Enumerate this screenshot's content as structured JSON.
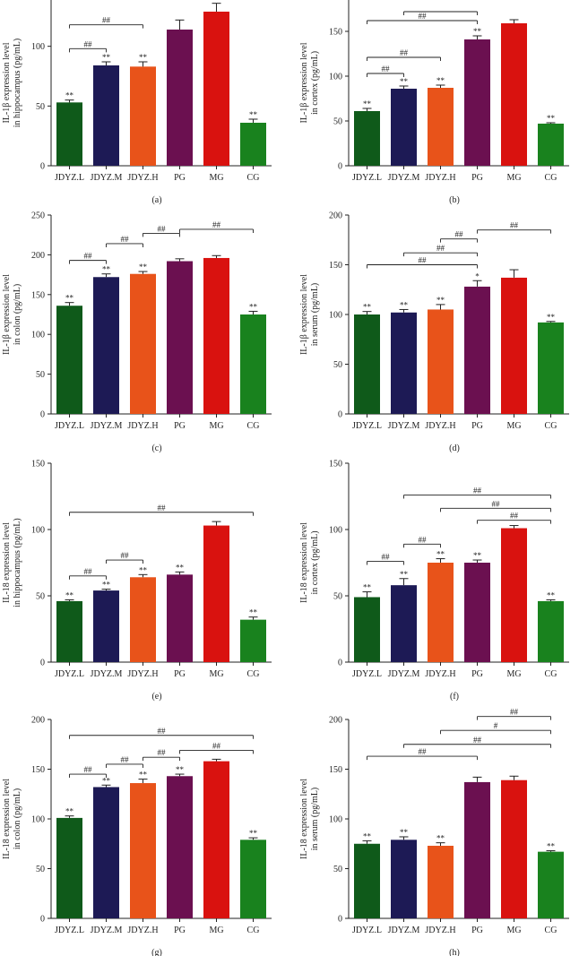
{
  "figure": {
    "categories": [
      "JDYZ.L",
      "JDYZ.M",
      "JDYZ.H",
      "PG",
      "MG",
      "CG"
    ],
    "bar_colors": {
      "JDYZ.L": "#0f5a1a",
      "JDYZ.M": "#1d1a55",
      "JDYZ.H": "#e8531a",
      "PG": "#6b1050",
      "MG": "#d9120f",
      "CG": "#19821e"
    }
  },
  "chart_data": [
    {
      "panel": "(a)",
      "type": "bar",
      "ylabel": [
        "IL-1β expression level",
        "in hippocampus (pg/mL)"
      ],
      "ylim": [
        0,
        150
      ],
      "yticks": [
        0,
        50,
        100
      ],
      "categories": [
        "JDYZ.L",
        "JDYZ.M",
        "JDYZ.H",
        "PG",
        "MG",
        "CG"
      ],
      "values": [
        53,
        84,
        83,
        114,
        129,
        36
      ],
      "errors": [
        2,
        3,
        4,
        8,
        7,
        3
      ],
      "labels": [
        "**",
        "**",
        "**",
        "",
        "",
        "**"
      ],
      "comparisons": [
        {
          "from": "JDYZ.L",
          "to": "JDYZ.H",
          "label": "##",
          "level": 118
        },
        {
          "from": "JDYZ.L",
          "to": "JDYZ.M",
          "label": "##",
          "level": 98
        }
      ]
    },
    {
      "panel": "(b)",
      "type": "bar",
      "ylabel": [
        "IL-1β expression level",
        "in cortex (pg/mL)"
      ],
      "ylim": [
        0,
        200
      ],
      "yticks": [
        0,
        50,
        100,
        150
      ],
      "categories": [
        "JDYZ.L",
        "JDYZ.M",
        "JDYZ.H",
        "PG",
        "MG",
        "CG"
      ],
      "values": [
        61,
        86,
        87,
        141,
        159,
        47
      ],
      "errors": [
        3,
        3,
        3,
        4,
        4,
        1
      ],
      "labels": [
        "**",
        "**",
        "**",
        "**",
        "",
        "**"
      ],
      "comparisons": [
        {
          "from": "JDYZ.L",
          "to": "PG",
          "label": "##",
          "level": 162
        },
        {
          "from": "JDYZ.M",
          "to": "PG",
          "label": "",
          "level": 172
        },
        {
          "from": "JDYZ.L",
          "to": "JDYZ.H",
          "label": "##",
          "level": 121
        },
        {
          "from": "JDYZ.L",
          "to": "JDYZ.M",
          "label": "##",
          "level": 103
        }
      ]
    },
    {
      "panel": "(c)",
      "type": "bar",
      "ylabel": [
        "IL-1β expression level",
        "in colon (pg/mL)"
      ],
      "ylim": [
        0,
        250
      ],
      "yticks": [
        0,
        50,
        100,
        150,
        200,
        250
      ],
      "categories": [
        "JDYZ.L",
        "JDYZ.M",
        "JDYZ.H",
        "PG",
        "MG",
        "CG"
      ],
      "values": [
        136,
        172,
        176,
        192,
        196,
        125
      ],
      "errors": [
        4,
        4,
        3,
        3,
        3,
        4
      ],
      "labels": [
        "**",
        "**",
        "**",
        "",
        "",
        "**"
      ],
      "comparisons": [
        {
          "from": "JDYZ.L",
          "to": "JDYZ.M",
          "label": "##",
          "level": 193
        },
        {
          "from": "JDYZ.M",
          "to": "JDYZ.H",
          "label": "##",
          "level": 214
        },
        {
          "from": "JDYZ.H",
          "to": "PG",
          "label": "##",
          "level": 227
        },
        {
          "from": "PG",
          "to": "CG",
          "label": "##",
          "level": 232
        }
      ]
    },
    {
      "panel": "(d)",
      "type": "bar",
      "ylabel": [
        "IL-1β expression level",
        "in serum (pg/mL)"
      ],
      "ylim": [
        0,
        200
      ],
      "yticks": [
        0,
        50,
        100,
        150,
        200
      ],
      "categories": [
        "JDYZ.L",
        "JDYZ.M",
        "JDYZ.H",
        "PG",
        "MG",
        "CG"
      ],
      "values": [
        100,
        102,
        105,
        128,
        137,
        92
      ],
      "errors": [
        3,
        3,
        5,
        6,
        8,
        1
      ],
      "labels": [
        "**",
        "**",
        "**",
        "*",
        "",
        "**"
      ],
      "comparisons": [
        {
          "from": "JDYZ.L",
          "to": "PG",
          "label": "##",
          "level": 150
        },
        {
          "from": "JDYZ.M",
          "to": "PG",
          "label": "##",
          "level": 162
        },
        {
          "from": "JDYZ.H",
          "to": "PG",
          "label": "##",
          "level": 176
        },
        {
          "from": "PG",
          "to": "CG",
          "label": "##",
          "level": 185
        }
      ]
    },
    {
      "panel": "(e)",
      "type": "bar",
      "ylabel": [
        "IL-18 expression level",
        "in hippocampus (pg/mL)"
      ],
      "ylim": [
        0,
        150
      ],
      "yticks": [
        0,
        50,
        100,
        150
      ],
      "categories": [
        "JDYZ.L",
        "JDYZ.M",
        "JDYZ.H",
        "PG",
        "MG",
        "CG"
      ],
      "values": [
        46,
        54,
        64,
        66,
        103,
        32
      ],
      "errors": [
        1,
        1,
        2,
        2,
        3,
        2
      ],
      "labels": [
        "**",
        "**",
        "**",
        "**",
        "",
        "**"
      ],
      "comparisons": [
        {
          "from": "JDYZ.L",
          "to": "JDYZ.M",
          "label": "##",
          "level": 65
        },
        {
          "from": "JDYZ.M",
          "to": "JDYZ.H",
          "label": "##",
          "level": 77
        },
        {
          "from": "JDYZ.L",
          "to": "CG",
          "label": "##",
          "level": 113
        }
      ]
    },
    {
      "panel": "(f)",
      "type": "bar",
      "ylabel": [
        "IL-18 expression level",
        "in cortex (pg/mL)"
      ],
      "ylim": [
        0,
        150
      ],
      "yticks": [
        0,
        50,
        100,
        150
      ],
      "categories": [
        "JDYZ.L",
        "JDYZ.M",
        "JDYZ.H",
        "PG",
        "MG",
        "CG"
      ],
      "values": [
        49,
        58,
        75,
        75,
        101,
        46
      ],
      "errors": [
        4,
        5,
        3,
        2,
        2,
        1
      ],
      "labels": [
        "**",
        "**",
        "**",
        "**",
        "",
        "**"
      ],
      "comparisons": [
        {
          "from": "JDYZ.L",
          "to": "JDYZ.M",
          "label": "##",
          "level": 76
        },
        {
          "from": "JDYZ.M",
          "to": "JDYZ.H",
          "label": "##",
          "level": 89
        },
        {
          "from": "PG",
          "to": "CG",
          "label": "##",
          "level": 107
        },
        {
          "from": "JDYZ.H",
          "to": "CG",
          "label": "##",
          "level": 116
        },
        {
          "from": "JDYZ.M",
          "to": "CG",
          "label": "##",
          "level": 126
        }
      ]
    },
    {
      "panel": "(g)",
      "type": "bar",
      "ylabel": [
        "IL-18 expression level",
        "in colon (pg/mL)"
      ],
      "ylim": [
        0,
        200
      ],
      "yticks": [
        0,
        50,
        100,
        150,
        200
      ],
      "categories": [
        "JDYZ.L",
        "JDYZ.M",
        "JDYZ.H",
        "PG",
        "MG",
        "CG"
      ],
      "values": [
        101,
        132,
        136,
        143,
        158,
        79
      ],
      "errors": [
        2,
        2,
        4,
        2,
        2,
        2
      ],
      "labels": [
        "**",
        "**",
        "**",
        "**",
        "",
        "**"
      ],
      "comparisons": [
        {
          "from": "JDYZ.L",
          "to": "JDYZ.M",
          "label": "##",
          "level": 145
        },
        {
          "from": "JDYZ.M",
          "to": "JDYZ.H",
          "label": "##",
          "level": 155
        },
        {
          "from": "JDYZ.H",
          "to": "PG",
          "label": "##",
          "level": 162
        },
        {
          "from": "PG",
          "to": "CG",
          "label": "##",
          "level": 169
        },
        {
          "from": "JDYZ.L",
          "to": "CG",
          "label": "##",
          "level": 184
        }
      ]
    },
    {
      "panel": "(h)",
      "type": "bar",
      "ylabel": [
        "IL-18 expression level",
        "in serum (pg/mL)"
      ],
      "ylim": [
        0,
        200
      ],
      "yticks": [
        0,
        50,
        100,
        150,
        200
      ],
      "categories": [
        "JDYZ.L",
        "JDYZ.M",
        "JDYZ.H",
        "PG",
        "MG",
        "CG"
      ],
      "values": [
        75,
        79,
        73,
        137,
        139,
        67
      ],
      "errors": [
        3,
        3,
        3,
        5,
        4,
        1
      ],
      "labels": [
        "**",
        "**",
        "**",
        "",
        "",
        "**"
      ],
      "comparisons": [
        {
          "from": "JDYZ.L",
          "to": "PG",
          "label": "##",
          "level": 163
        },
        {
          "from": "JDYZ.M",
          "to": "CG",
          "label": "##",
          "level": 175
        },
        {
          "from": "JDYZ.H",
          "to": "CG",
          "label": "#",
          "level": 189
        },
        {
          "from": "PG",
          "to": "CG",
          "label": "##",
          "level": 203
        }
      ]
    }
  ]
}
